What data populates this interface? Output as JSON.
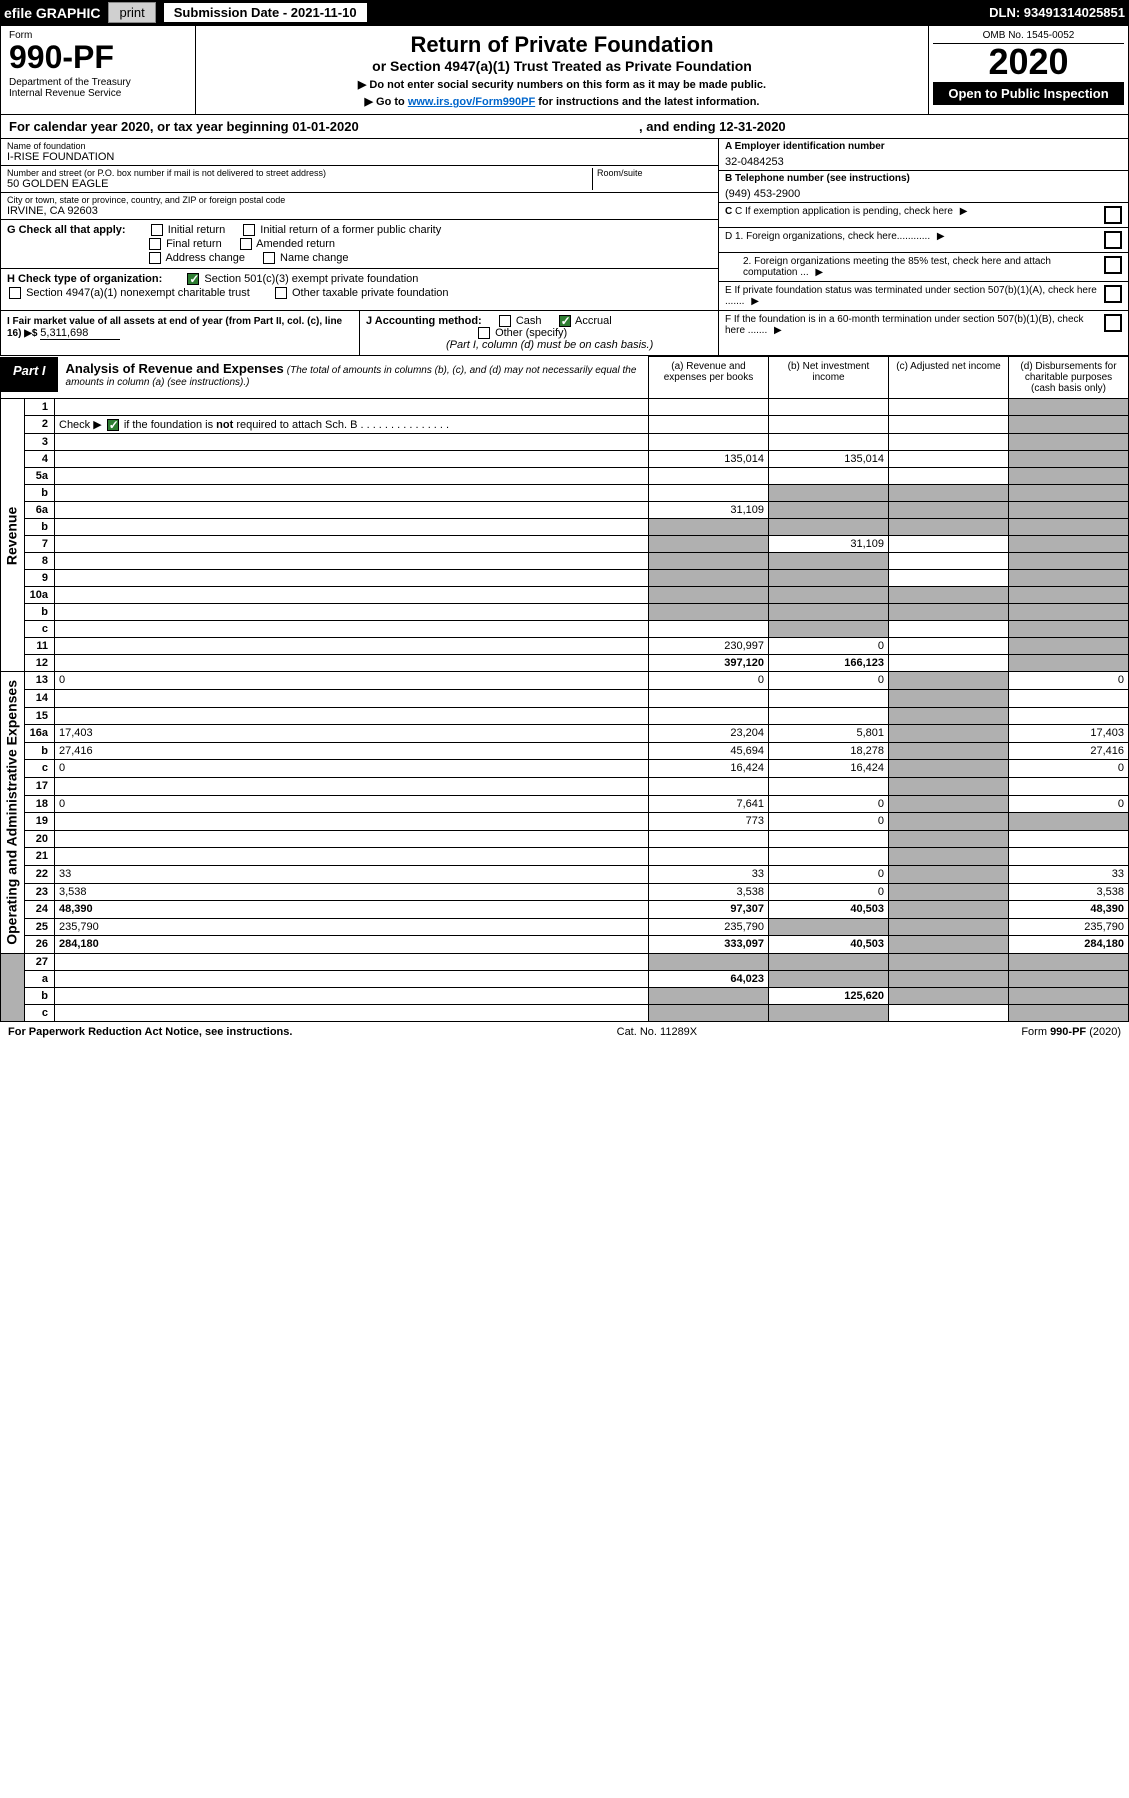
{
  "top": {
    "efile": "efile GRAPHIC",
    "print": "print",
    "sub_date_label": "Submission Date - 2021-11-10",
    "dln": "DLN: 93491314025851"
  },
  "header": {
    "form_label": "Form",
    "form_no": "990-PF",
    "dept": "Department of the Treasury\nInternal Revenue Service",
    "title": "Return of Private Foundation",
    "subtitle": "or Section 4947(a)(1) Trust Treated as Private Foundation",
    "note1": "▶ Do not enter social security numbers on this form as it may be made public.",
    "note2_pre": "▶ Go to ",
    "note2_link": "www.irs.gov/Form990PF",
    "note2_post": " for instructions and the latest information.",
    "omb": "OMB No. 1545-0052",
    "year": "2020",
    "open": "Open to Public Inspection"
  },
  "cal": {
    "text": "For calendar year 2020, or tax year beginning 01-01-2020",
    "end": ", and ending 12-31-2020"
  },
  "info": {
    "name_label": "Name of foundation",
    "name": "I-RISE FOUNDATION",
    "addr_label": "Number and street (or P.O. box number if mail is not delivered to street address)",
    "addr": "50 GOLDEN EAGLE",
    "room_label": "Room/suite",
    "city_label": "City or town, state or province, country, and ZIP or foreign postal code",
    "city": "IRVINE, CA  92603",
    "a_label": "A Employer identification number",
    "a_val": "32-0484253",
    "b_label": "B Telephone number (see instructions)",
    "b_val": "(949) 453-2900",
    "c_label": "C If exemption application is pending, check here",
    "d1_label": "D 1. Foreign organizations, check here............",
    "d2_label": "2. Foreign organizations meeting the 85% test, check here and attach computation ...",
    "e_label": "E  If private foundation status was terminated under section 507(b)(1)(A), check here .......",
    "f_label": "F  If the foundation is in a 60-month termination under section 507(b)(1)(B), check here .......",
    "g_label": "G Check all that apply:",
    "g_opts": [
      "Initial return",
      "Initial return of a former public charity",
      "Final return",
      "Amended return",
      "Address change",
      "Name change"
    ],
    "h_label": "H Check type of organization:",
    "h_opt1": "Section 501(c)(3) exempt private foundation",
    "h_opt2": "Section 4947(a)(1) nonexempt charitable trust",
    "h_opt3": "Other taxable private foundation",
    "i_label": "I Fair market value of all assets at end of year (from Part II, col. (c), line 16) ▶$ ",
    "i_val": "5,311,698",
    "j_label": "J Accounting method:",
    "j_cash": "Cash",
    "j_accrual": "Accrual",
    "j_other": "Other (specify)",
    "j_note": "(Part I, column (d) must be on cash basis.)"
  },
  "part": {
    "label": "Part I",
    "title": "Analysis of Revenue and Expenses",
    "sub": "(The total of amounts in columns (b), (c), and (d) may not necessarily equal the amounts in column (a) (see instructions).)",
    "col_a": "(a) Revenue and expenses per books",
    "col_b": "(b) Net investment income",
    "col_c": "(c) Adjusted net income",
    "col_d": "(d) Disbursements for charitable purposes (cash basis only)"
  },
  "rev_label": "Revenue",
  "exp_label": "Operating and Administrative Expenses",
  "rows": [
    {
      "n": "1",
      "d": "",
      "a": "",
      "b": "",
      "c": ""
    },
    {
      "n": "2",
      "d": "",
      "a": "",
      "b": "",
      "c": "",
      "check": true
    },
    {
      "n": "3",
      "d": "",
      "a": "",
      "b": "",
      "c": ""
    },
    {
      "n": "4",
      "d": "",
      "a": "135,014",
      "b": "135,014",
      "c": ""
    },
    {
      "n": "5a",
      "d": "",
      "a": "",
      "b": "",
      "c": ""
    },
    {
      "n": "b",
      "d": "",
      "a": "",
      "b": "",
      "c": "",
      "shadebcd": true
    },
    {
      "n": "6a",
      "d": "",
      "a": "31,109",
      "b": "",
      "c": "",
      "shadebcd": true
    },
    {
      "n": "b",
      "d": "",
      "a": "",
      "b": "",
      "c": "",
      "shadeall": true
    },
    {
      "n": "7",
      "d": "",
      "a": "",
      "b": "31,109",
      "c": "",
      "shadea": true
    },
    {
      "n": "8",
      "d": "",
      "a": "",
      "b": "",
      "c": "",
      "shadeab": true
    },
    {
      "n": "9",
      "d": "",
      "a": "",
      "b": "",
      "c": "",
      "shadeab": true
    },
    {
      "n": "10a",
      "d": "",
      "a": "",
      "b": "",
      "c": "",
      "shadeall": true
    },
    {
      "n": "b",
      "d": "",
      "a": "",
      "b": "",
      "c": "",
      "shadeall": true
    },
    {
      "n": "c",
      "d": "",
      "a": "",
      "b": "",
      "c": "",
      "shadeb": true
    },
    {
      "n": "11",
      "d": "",
      "a": "230,997",
      "b": "0",
      "c": ""
    },
    {
      "n": "12",
      "d": "",
      "a": "397,120",
      "b": "166,123",
      "c": "",
      "bold": true
    }
  ],
  "exp_rows": [
    {
      "n": "13",
      "d": "0",
      "a": "0",
      "b": "0",
      "c": ""
    },
    {
      "n": "14",
      "d": "",
      "a": "",
      "b": "",
      "c": ""
    },
    {
      "n": "15",
      "d": "",
      "a": "",
      "b": "",
      "c": ""
    },
    {
      "n": "16a",
      "d": "17,403",
      "a": "23,204",
      "b": "5,801",
      "c": ""
    },
    {
      "n": "b",
      "d": "27,416",
      "a": "45,694",
      "b": "18,278",
      "c": ""
    },
    {
      "n": "c",
      "d": "0",
      "a": "16,424",
      "b": "16,424",
      "c": ""
    },
    {
      "n": "17",
      "d": "",
      "a": "",
      "b": "",
      "c": ""
    },
    {
      "n": "18",
      "d": "0",
      "a": "7,641",
      "b": "0",
      "c": ""
    },
    {
      "n": "19",
      "d": "",
      "a": "773",
      "b": "0",
      "c": "",
      "shaded": true
    },
    {
      "n": "20",
      "d": "",
      "a": "",
      "b": "",
      "c": ""
    },
    {
      "n": "21",
      "d": "",
      "a": "",
      "b": "",
      "c": ""
    },
    {
      "n": "22",
      "d": "33",
      "a": "33",
      "b": "0",
      "c": ""
    },
    {
      "n": "23",
      "d": "3,538",
      "a": "3,538",
      "b": "0",
      "c": ""
    },
    {
      "n": "24",
      "d": "48,390",
      "a": "97,307",
      "b": "40,503",
      "c": "",
      "bold": true
    },
    {
      "n": "25",
      "d": "235,790",
      "a": "235,790",
      "b": "",
      "c": "",
      "shadebc": true
    },
    {
      "n": "26",
      "d": "284,180",
      "a": "333,097",
      "b": "40,503",
      "c": "",
      "bold": true
    }
  ],
  "net_rows": [
    {
      "n": "27",
      "d": "",
      "a": "",
      "b": "",
      "c": "",
      "shadeall": true
    },
    {
      "n": "a",
      "d": "",
      "a": "64,023",
      "b": "",
      "c": "",
      "bold": true,
      "shadebcd": true
    },
    {
      "n": "b",
      "d": "",
      "a": "",
      "b": "125,620",
      "c": "",
      "bold": true,
      "shadeacd": true
    },
    {
      "n": "c",
      "d": "",
      "a": "",
      "b": "",
      "c": "",
      "bold": true,
      "shadeabd": true
    }
  ],
  "footer": {
    "left": "For Paperwork Reduction Act Notice, see instructions.",
    "mid": "Cat. No. 11289X",
    "right": "Form 990-PF (2020)"
  }
}
